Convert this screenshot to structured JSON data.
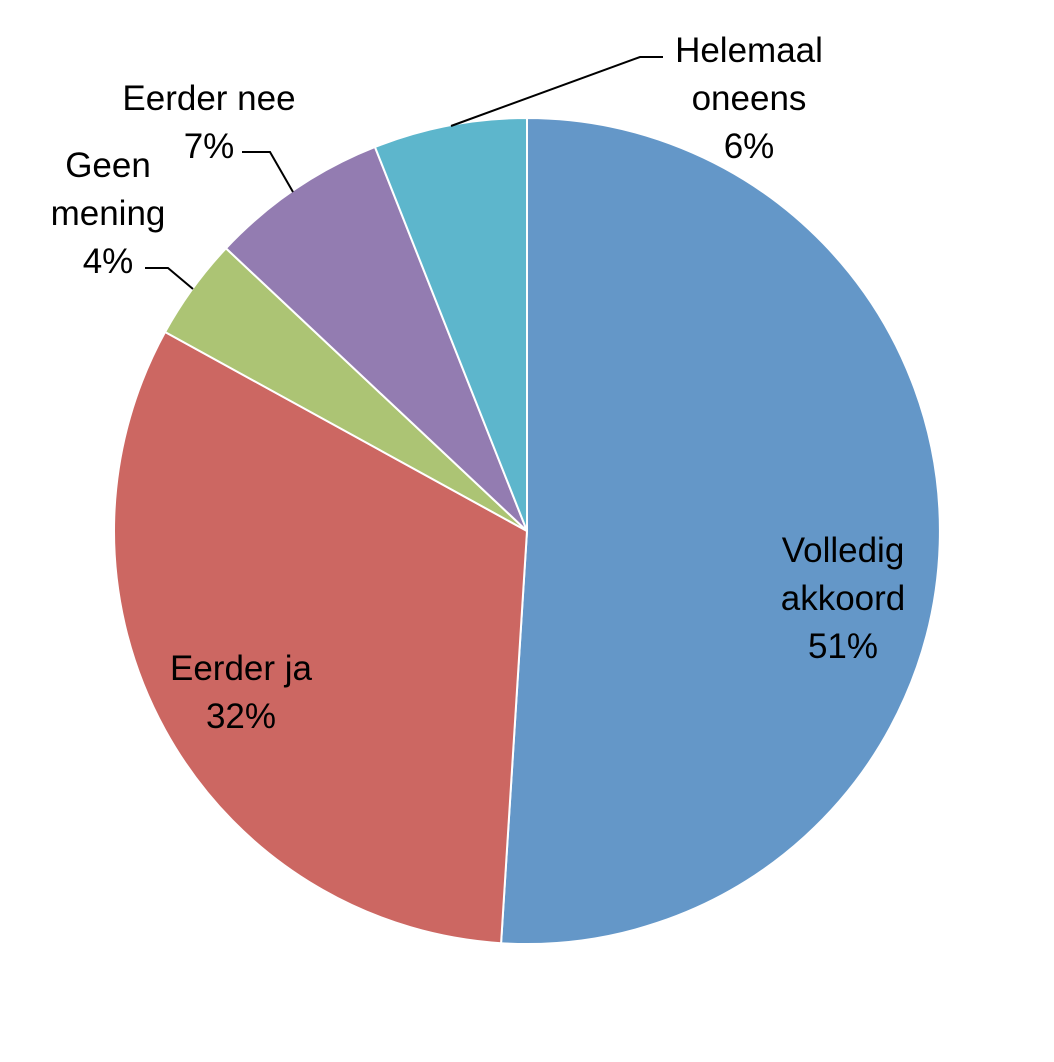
{
  "chart_data": {
    "type": "pie",
    "start_angle_deg": 0,
    "direction": "clockwise",
    "slices": [
      {
        "label": "Volledig akkoord",
        "label_lines": [
          "Volledig",
          "akkoord"
        ],
        "value": 51,
        "value_text": "51%",
        "color": "#6497c8",
        "label_position": "inside"
      },
      {
        "label": "Eerder ja",
        "label_lines": [
          "Eerder ja"
        ],
        "value": 32,
        "value_text": "32%",
        "color": "#cc6762",
        "label_position": "inside"
      },
      {
        "label": "Geen mening",
        "label_lines": [
          "Geen",
          "mening"
        ],
        "value": 4,
        "value_text": "4%",
        "color": "#acc474",
        "label_position": "outside"
      },
      {
        "label": "Eerder nee",
        "label_lines": [
          "Eerder nee"
        ],
        "value": 7,
        "value_text": "7%",
        "color": "#937cb1",
        "label_position": "outside"
      },
      {
        "label": "Helemaal oneens",
        "label_lines": [
          "Helemaal",
          "oneens"
        ],
        "value": 6,
        "value_text": "6%",
        "color": "#5db6cc",
        "label_position": "outside"
      }
    ]
  }
}
